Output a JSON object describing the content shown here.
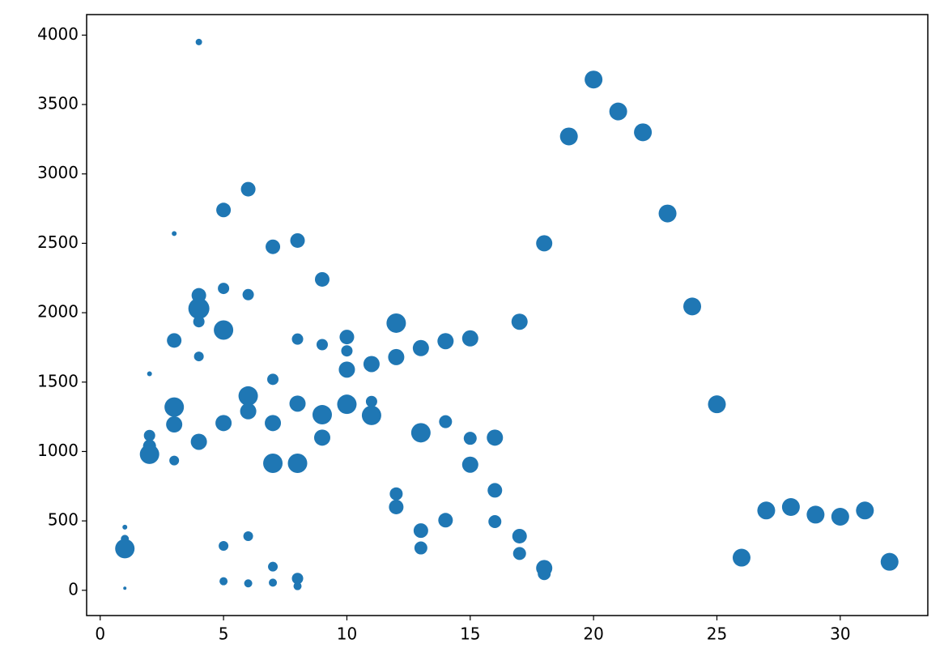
{
  "chart_data": {
    "type": "scatter",
    "color": "#1f77b4",
    "x": [
      1,
      1,
      1,
      1,
      2,
      2,
      2,
      2,
      3,
      3,
      3,
      3,
      3,
      4,
      4,
      4,
      4,
      4,
      4,
      5,
      5,
      5,
      5,
      5,
      5,
      6,
      6,
      6,
      6,
      6,
      6,
      7,
      7,
      7,
      7,
      7,
      7,
      8,
      8,
      8,
      8,
      8,
      8,
      9,
      9,
      9,
      9,
      10,
      10,
      10,
      10,
      11,
      11,
      11,
      12,
      12,
      12,
      12,
      13,
      13,
      13,
      13,
      14,
      14,
      14,
      15,
      15,
      15,
      16,
      16,
      16,
      17,
      17,
      17,
      18,
      18,
      18,
      19,
      20,
      21,
      22,
      23,
      24,
      25,
      26,
      27,
      28,
      29,
      30,
      31,
      32
    ],
    "values": [
      455,
      370,
      300,
      15,
      1560,
      1115,
      1040,
      980,
      2570,
      1800,
      1320,
      1195,
      935,
      3950,
      2125,
      2030,
      1935,
      1685,
      1070,
      2740,
      2175,
      1875,
      1205,
      320,
      65,
      2890,
      2130,
      1400,
      1290,
      390,
      50,
      2475,
      1520,
      1205,
      915,
      170,
      55,
      2520,
      1810,
      1345,
      915,
      85,
      30,
      2240,
      1770,
      1265,
      1100,
      1825,
      1725,
      1590,
      1340,
      1630,
      1360,
      1260,
      1925,
      1680,
      695,
      600,
      1745,
      1135,
      430,
      305,
      1795,
      1215,
      505,
      1815,
      1095,
      905,
      1100,
      720,
      495,
      1935,
      390,
      265,
      2500,
      160,
      120,
      3270,
      3680,
      3450,
      3300,
      2715,
      2045,
      1340,
      235,
      575,
      600,
      545,
      530,
      575,
      205
    ],
    "sizes": [
      3,
      5,
      12,
      2,
      3,
      7,
      8,
      12,
      3,
      9,
      12,
      10,
      6,
      4,
      9,
      13,
      7,
      6,
      10,
      9,
      7,
      12,
      10,
      6,
      5,
      9,
      7,
      12,
      10,
      6,
      5,
      9,
      7,
      10,
      12,
      6,
      5,
      9,
      7,
      10,
      12,
      7,
      5,
      9,
      7,
      12,
      10,
      9,
      7,
      10,
      12,
      10,
      7,
      12,
      12,
      10,
      8,
      9,
      10,
      12,
      9,
      8,
      10,
      8,
      9,
      10,
      8,
      10,
      10,
      9,
      8,
      10,
      9,
      8,
      10,
      10,
      8,
      11,
      11,
      11,
      11,
      11,
      11,
      11,
      11,
      11,
      11,
      11,
      11,
      11,
      11
    ],
    "xlim": [
      -0.55,
      33.55
    ],
    "ylim": [
      -182,
      4148
    ],
    "xticks": [
      0,
      5,
      10,
      15,
      20,
      25,
      30
    ],
    "yticks": [
      0,
      500,
      1000,
      1500,
      2000,
      2500,
      3000,
      3500,
      4000
    ]
  }
}
